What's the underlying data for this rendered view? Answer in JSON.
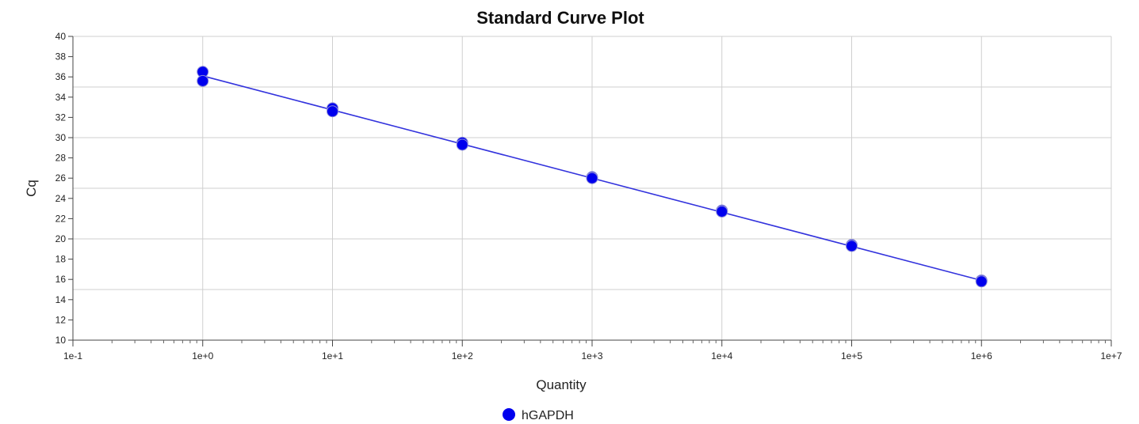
{
  "chart_data": {
    "type": "scatter",
    "title": "Standard Curve Plot",
    "xlabel": "Quantity",
    "ylabel": "Cq",
    "x_scale": "log",
    "xlim": [
      0.1,
      10000000
    ],
    "ylim": [
      10,
      40
    ],
    "x_ticks": [
      "1e-1",
      "1e+0",
      "1e+1",
      "1e+2",
      "1e+3",
      "1e+4",
      "1e+5",
      "1e+6",
      "1e+7"
    ],
    "y_ticks": [
      "10",
      "12",
      "14",
      "16",
      "18",
      "20",
      "22",
      "24",
      "26",
      "28",
      "30",
      "32",
      "34",
      "36",
      "38",
      "40"
    ],
    "grid": true,
    "legend_position": "bottom",
    "series": [
      {
        "name": "hGAPDH",
        "color": "#0000ee",
        "points": [
          {
            "x": 1,
            "y": 36.5
          },
          {
            "x": 1,
            "y": 35.6
          },
          {
            "x": 10,
            "y": 32.9
          },
          {
            "x": 10,
            "y": 32.6
          },
          {
            "x": 100,
            "y": 29.5
          },
          {
            "x": 100,
            "y": 29.3
          },
          {
            "x": 1000,
            "y": 26.1
          },
          {
            "x": 1000,
            "y": 26.0
          },
          {
            "x": 10000,
            "y": 22.8
          },
          {
            "x": 10000,
            "y": 22.7
          },
          {
            "x": 100000,
            "y": 19.4
          },
          {
            "x": 100000,
            "y": 19.3
          },
          {
            "x": 1000000,
            "y": 15.9
          },
          {
            "x": 1000000,
            "y": 15.8
          }
        ],
        "fit_line": {
          "color": "#3333dd",
          "x": [
            1,
            1000000
          ],
          "y": [
            36.1,
            15.9
          ]
        }
      }
    ]
  }
}
